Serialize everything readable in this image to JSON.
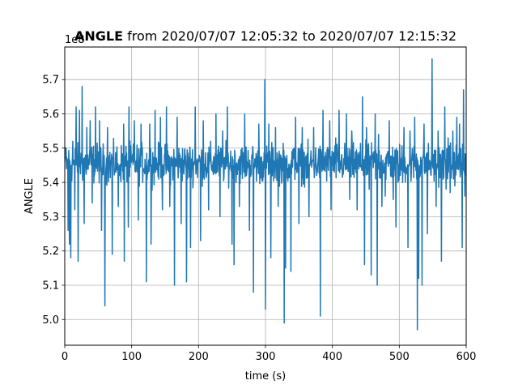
{
  "chart_data": {
    "type": "line",
    "title_bold": "ANGLE",
    "title_rest": " from 2020/07/07 12:05:32 to 2020/07/07 12:15:32",
    "xlabel": "time (s)",
    "ylabel": "ANGLE",
    "y_offset_label": "1e8",
    "xlim": [
      0,
      600
    ],
    "ylim": [
      4.925,
      5.795
    ],
    "x_ticks": [
      0,
      100,
      200,
      300,
      400,
      500,
      600
    ],
    "x_tick_labels": [
      "0",
      "100",
      "200",
      "300",
      "400",
      "500",
      "600"
    ],
    "y_ticks": [
      5.0,
      5.1,
      5.2,
      5.3,
      5.4,
      5.5,
      5.6,
      5.7
    ],
    "y_tick_labels": [
      "5.0",
      "5.1",
      "5.2",
      "5.3",
      "5.4",
      "5.5",
      "5.6",
      "5.7"
    ],
    "grid": true,
    "series": [
      {
        "color": "#1f77b4",
        "baseline": 5.455,
        "band": 0.075,
        "n_points": 1200,
        "spikes": [
          [
            2,
            5.5
          ],
          [
            5,
            5.26
          ],
          [
            7,
            5.22
          ],
          [
            9,
            5.18
          ],
          [
            12,
            5.52
          ],
          [
            15,
            5.32
          ],
          [
            17,
            5.62
          ],
          [
            20,
            5.17
          ],
          [
            22,
            5.61
          ],
          [
            26,
            5.68
          ],
          [
            29,
            5.28
          ],
          [
            33,
            5.56
          ],
          [
            38,
            5.58
          ],
          [
            41,
            5.34
          ],
          [
            46,
            5.62
          ],
          [
            52,
            5.58
          ],
          [
            55,
            5.26
          ],
          [
            60,
            5.04
          ],
          [
            64,
            5.56
          ],
          [
            71,
            5.19
          ],
          [
            80,
            5.33
          ],
          [
            88,
            5.57
          ],
          [
            89,
            5.17
          ],
          [
            95,
            5.27
          ],
          [
            96,
            5.62
          ],
          [
            104,
            5.58
          ],
          [
            110,
            5.29
          ],
          [
            114,
            5.57
          ],
          [
            122,
            5.11
          ],
          [
            127,
            5.57
          ],
          [
            129,
            5.22
          ],
          [
            135,
            5.61
          ],
          [
            143,
            5.59
          ],
          [
            146,
            5.32
          ],
          [
            152,
            5.62
          ],
          [
            157,
            5.33
          ],
          [
            164,
            5.1
          ],
          [
            168,
            5.59
          ],
          [
            174,
            5.28
          ],
          [
            182,
            5.11
          ],
          [
            188,
            5.21
          ],
          [
            195,
            5.62
          ],
          [
            203,
            5.23
          ],
          [
            207,
            5.58
          ],
          [
            215,
            5.32
          ],
          [
            226,
            5.6
          ],
          [
            232,
            5.3
          ],
          [
            236,
            5.55
          ],
          [
            243,
            5.62
          ],
          [
            250,
            5.22
          ],
          [
            253,
            5.16
          ],
          [
            261,
            5.33
          ],
          [
            269,
            5.6
          ],
          [
            276,
            5.26
          ],
          [
            282,
            5.08
          ],
          [
            290,
            5.57
          ],
          [
            299,
            5.7
          ],
          [
            300,
            5.03
          ],
          [
            305,
            5.57
          ],
          [
            308,
            5.18
          ],
          [
            315,
            5.56
          ],
          [
            319,
            5.33
          ],
          [
            328,
            4.99
          ],
          [
            330,
            5.15
          ],
          [
            338,
            5.14
          ],
          [
            345,
            5.59
          ],
          [
            350,
            5.28
          ],
          [
            355,
            5.56
          ],
          [
            365,
            5.3
          ],
          [
            372,
            5.56
          ],
          [
            382,
            5.01
          ],
          [
            386,
            5.61
          ],
          [
            396,
            5.58
          ],
          [
            398,
            5.32
          ],
          [
            405,
            5.53
          ],
          [
            410,
            5.61
          ],
          [
            421,
            5.6
          ],
          [
            426,
            5.35
          ],
          [
            429,
            5.55
          ],
          [
            437,
            5.32
          ],
          [
            445,
            5.65
          ],
          [
            448,
            5.16
          ],
          [
            451,
            5.56
          ],
          [
            455,
            5.38
          ],
          [
            458,
            5.13
          ],
          [
            464,
            5.6
          ],
          [
            467,
            5.1
          ],
          [
            469,
            5.54
          ],
          [
            474,
            5.33
          ],
          [
            479,
            5.36
          ],
          [
            485,
            5.58
          ],
          [
            491,
            5.35
          ],
          [
            495,
            5.27
          ],
          [
            498,
            5.4
          ],
          [
            505,
            5.4
          ],
          [
            507,
            5.56
          ],
          [
            513,
            5.21
          ],
          [
            516,
            5.55
          ],
          [
            523,
            5.59
          ],
          [
            527,
            4.97
          ],
          [
            529,
            5.12
          ],
          [
            534,
            5.1
          ],
          [
            537,
            5.57
          ],
          [
            542,
            5.25
          ],
          [
            549,
            5.76
          ],
          [
            555,
            5.33
          ],
          [
            558,
            5.55
          ],
          [
            563,
            5.17
          ],
          [
            568,
            5.62
          ],
          [
            570,
            5.38
          ],
          [
            573,
            5.53
          ],
          [
            576,
            5.37
          ],
          [
            580,
            5.55
          ],
          [
            586,
            5.59
          ],
          [
            590,
            5.57
          ],
          [
            594,
            5.21
          ],
          [
            596,
            5.67
          ],
          [
            598,
            5.36
          ],
          [
            600,
            5.42
          ]
        ]
      }
    ]
  }
}
